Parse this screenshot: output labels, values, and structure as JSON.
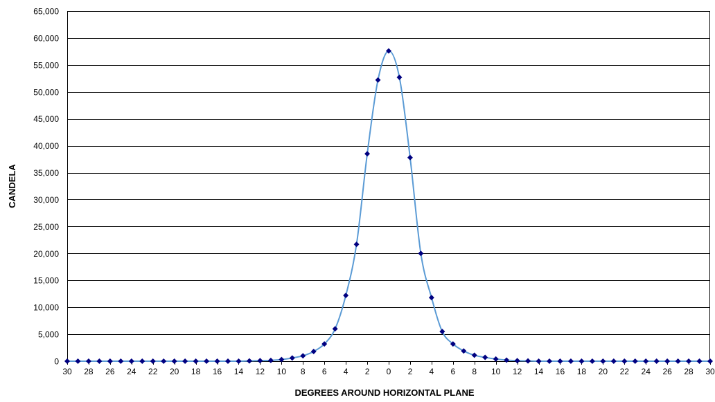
{
  "chart_data": {
    "type": "line",
    "title": "",
    "xlabel": "DEGREES AROUND HORIZONTAL PLANE",
    "ylabel": "CANDELA",
    "x_range": [
      -30,
      30
    ],
    "ylim": [
      0,
      65000
    ],
    "y_ticks": [
      0,
      5000,
      10000,
      15000,
      20000,
      25000,
      30000,
      35000,
      40000,
      45000,
      50000,
      55000,
      60000,
      65000
    ],
    "y_tick_labels": [
      "0",
      "5,000",
      "10,000",
      "15,000",
      "20,000",
      "25,000",
      "30,000",
      "35,000",
      "40,000",
      "45,000",
      "50,000",
      "55,000",
      "60,000",
      "65,000"
    ],
    "x_ticks": [
      -30,
      -28,
      -26,
      -24,
      -22,
      -20,
      -18,
      -16,
      -14,
      -12,
      -10,
      -8,
      -6,
      -4,
      -2,
      0,
      2,
      4,
      6,
      8,
      10,
      12,
      14,
      16,
      18,
      20,
      22,
      24,
      26,
      28,
      30
    ],
    "x_tick_labels": [
      "30",
      "28",
      "26",
      "24",
      "22",
      "20",
      "18",
      "16",
      "14",
      "12",
      "10",
      "8",
      "6",
      "4",
      "2",
      "0",
      "2",
      "4",
      "6",
      "8",
      "10",
      "12",
      "14",
      "16",
      "18",
      "20",
      "22",
      "24",
      "26",
      "28",
      "30"
    ],
    "grid": "horizontal",
    "legend": "none",
    "line_color": "#5B9BD5",
    "marker_color": "#000080",
    "marker": "diamond",
    "x": [
      -30,
      -29,
      -28,
      -27,
      -26,
      -25,
      -24,
      -23,
      -22,
      -21,
      -20,
      -19,
      -18,
      -17,
      -16,
      -15,
      -14,
      -13,
      -12,
      -11,
      -10,
      -9,
      -8,
      -7,
      -6,
      -5,
      -4,
      -3,
      -2,
      -1,
      0,
      1,
      2,
      3,
      4,
      5,
      6,
      7,
      8,
      9,
      10,
      11,
      12,
      13,
      14,
      15,
      16,
      17,
      18,
      19,
      20,
      21,
      22,
      23,
      24,
      25,
      26,
      27,
      28,
      29,
      30
    ],
    "values": [
      0,
      0,
      0,
      0,
      0,
      0,
      0,
      0,
      0,
      0,
      0,
      0,
      0,
      0,
      0,
      0,
      0,
      50,
      100,
      150,
      300,
      600,
      1000,
      1800,
      3200,
      6000,
      12200,
      21700,
      38500,
      52200,
      57600,
      52700,
      37800,
      20000,
      11800,
      5500,
      3200,
      1900,
      1100,
      700,
      400,
      200,
      100,
      50,
      0,
      0,
      0,
      0,
      0,
      0,
      0,
      0,
      0,
      0,
      0,
      0,
      0,
      0,
      0,
      0,
      0
    ]
  }
}
